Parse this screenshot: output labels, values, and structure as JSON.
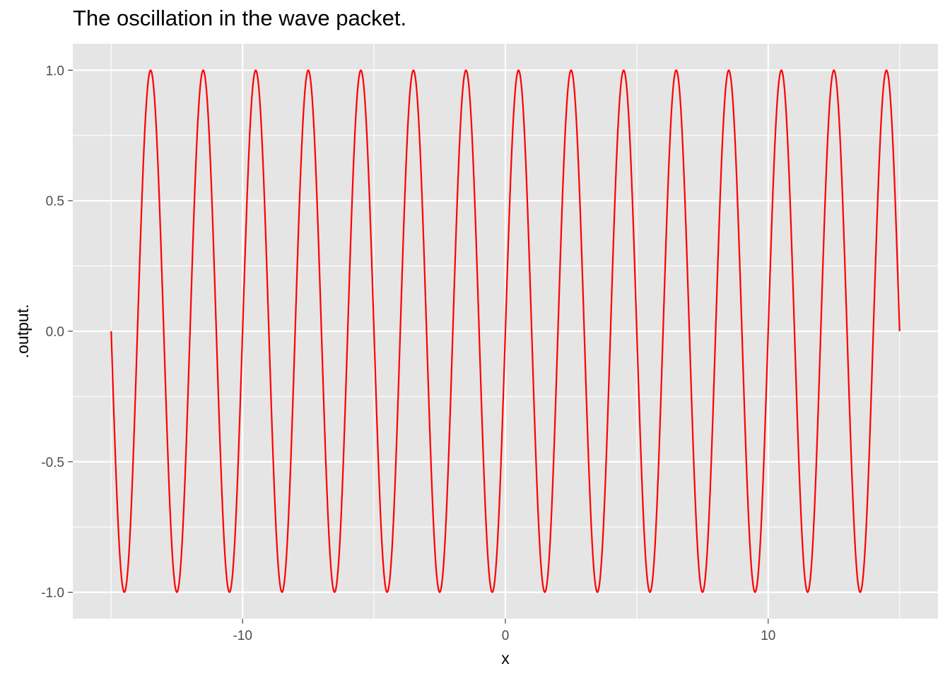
{
  "chart_data": {
    "type": "line",
    "title": "The oscillation in the wave packet.",
    "xlabel": "x",
    "ylabel": ".output.",
    "xlim": [
      -15,
      15
    ],
    "ylim": [
      -1,
      1
    ],
    "x_ticks": [
      -10,
      0,
      10
    ],
    "x_tick_labels": [
      "-10",
      "0",
      "10"
    ],
    "y_ticks": [
      -1.0,
      -0.5,
      0.0,
      0.5,
      1.0
    ],
    "y_tick_labels": [
      "-1.0",
      "-0.5",
      "0.0",
      "0.5",
      "1.0"
    ],
    "grid": true,
    "panel_color": "#e5e5e5",
    "grid_color": "#ffffff",
    "series": [
      {
        "color": "#ff0000",
        "x": [
          -15,
          -14.5,
          -14,
          -13.5,
          -13,
          -12.5,
          -12,
          -11.5,
          -11,
          -10.5,
          -10,
          -9.5,
          -9,
          -8.5,
          -8,
          -7.5,
          -7,
          -6.5,
          -6,
          -5.5,
          -5,
          -4.5,
          -4,
          -3.5,
          -3,
          -2.5,
          -2,
          -1.5,
          -1,
          -0.5,
          0,
          0.5,
          1,
          1.5,
          2,
          2.5,
          3,
          3.5,
          4,
          4.5,
          5,
          5.5,
          6,
          6.5,
          7,
          7.5,
          8,
          8.5,
          9,
          9.5,
          10,
          10.5,
          11,
          11.5,
          12,
          12.5,
          13,
          13.5,
          14,
          14.5,
          15
        ],
        "y": [
          0,
          -1,
          0,
          1,
          0,
          -1,
          0,
          1,
          0,
          -1,
          0,
          1,
          0,
          -1,
          0,
          1,
          0,
          -1,
          0,
          1,
          0,
          -1,
          0,
          1,
          0,
          -1,
          0,
          1,
          0,
          -1,
          0,
          1,
          0,
          -1,
          0,
          1,
          0,
          -1,
          0,
          1,
          0,
          -1,
          0,
          1,
          0,
          -1,
          0,
          1,
          0,
          -1,
          0,
          1,
          0,
          -1,
          0,
          1,
          0,
          -1,
          0,
          1,
          0
        ],
        "description": "y = sin(pi * x) sampled at half-integers; the curve is a smooth sine wave with period 2"
      }
    ]
  }
}
